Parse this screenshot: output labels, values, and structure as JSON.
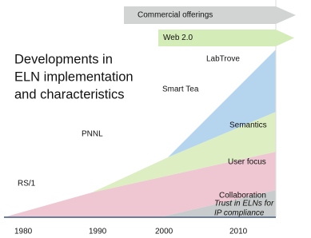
{
  "title": [
    "Developments in",
    "ELN implementation",
    "and characteristics"
  ],
  "arrows": [
    "Commercial offerings",
    "Web 2.0"
  ],
  "milestones": [
    "LabTrove",
    "Smart Tea",
    "PNNL",
    "RS/1"
  ],
  "layers": [
    "Semantics",
    "User focus",
    "Collaboration",
    [
      "Trust in ELNs for",
      "IP compliance"
    ]
  ],
  "axis": [
    "1980",
    "1990",
    "2000",
    "2010"
  ]
}
